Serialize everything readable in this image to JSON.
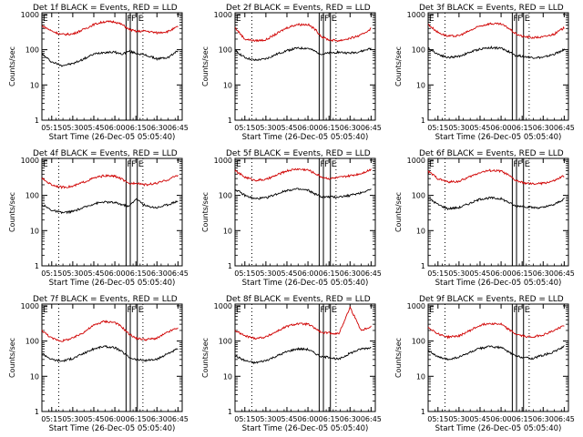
{
  "figure": {
    "ylabel": "Counts/sec",
    "xlabel": "Start Time (26-Dec-05 05:05:40)",
    "x_ticks": [
      "05:15",
      "05:30",
      "05:45",
      "06:00",
      "06:15",
      "06:30",
      "06:45"
    ],
    "y_ticks": [
      "1",
      "10",
      "100",
      "1000"
    ],
    "colors": {
      "events": "#000000",
      "lld": "#d00000",
      "axes": "#000000",
      "markers": "#000000"
    },
    "marker_labels": [
      "F",
      "F",
      "E"
    ]
  },
  "chart_data": [
    {
      "type": "line",
      "title": "Det 1f BLACK = Events, RED = LLD",
      "yscale": "log",
      "ylim": [
        1,
        1000
      ],
      "xlim": [
        "05:08",
        "06:48"
      ],
      "markers_x": [
        "06:08",
        "06:11",
        "06:16"
      ],
      "dotted_x": [
        "05:20",
        "06:20"
      ],
      "series": [
        {
          "name": "Events",
          "x": [
            "05:08",
            "05:15",
            "05:22",
            "05:30",
            "05:38",
            "05:45",
            "05:52",
            "06:00",
            "06:05",
            "06:10",
            "06:15",
            "06:22",
            "06:30",
            "06:38",
            "06:45"
          ],
          "y": [
            75,
            45,
            36,
            40,
            55,
            75,
            85,
            85,
            75,
            90,
            80,
            70,
            55,
            60,
            95
          ]
        },
        {
          "name": "LLD",
          "x": [
            "05:08",
            "05:15",
            "05:22",
            "05:30",
            "05:38",
            "05:45",
            "05:52",
            "06:00",
            "06:05",
            "06:10",
            "06:15",
            "06:22",
            "06:30",
            "06:38",
            "06:45"
          ],
          "y": [
            480,
            340,
            270,
            280,
            380,
            520,
            620,
            620,
            520,
            380,
            330,
            340,
            300,
            330,
            450
          ]
        }
      ]
    },
    {
      "type": "line",
      "title": "Det 2f BLACK = Events, RED = LLD",
      "yscale": "log",
      "ylim": [
        1,
        1000
      ],
      "xlim": [
        "05:08",
        "06:48"
      ],
      "markers_x": [
        "06:08",
        "06:11",
        "06:16"
      ],
      "dotted_x": [
        "05:20",
        "06:20"
      ],
      "series": [
        {
          "name": "Events",
          "x": [
            "05:08",
            "05:15",
            "05:22",
            "05:30",
            "05:38",
            "05:45",
            "05:52",
            "06:00",
            "06:05",
            "06:10",
            "06:15",
            "06:22",
            "06:30",
            "06:38",
            "06:45"
          ],
          "y": [
            95,
            60,
            50,
            55,
            75,
            95,
            110,
            110,
            90,
            75,
            80,
            85,
            80,
            90,
            110
          ]
        },
        {
          "name": "LLD",
          "x": [
            "05:08",
            "05:15",
            "05:22",
            "05:30",
            "05:38",
            "05:45",
            "05:52",
            "06:00",
            "06:05",
            "06:10",
            "06:15",
            "06:22",
            "06:30",
            "06:38",
            "06:45"
          ],
          "y": [
            420,
            200,
            180,
            190,
            290,
            420,
            520,
            520,
            380,
            230,
            190,
            180,
            210,
            260,
            400
          ]
        }
      ]
    },
    {
      "type": "line",
      "title": "Det 3f BLACK = Events, RED = LLD",
      "yscale": "log",
      "ylim": [
        1,
        1000
      ],
      "xlim": [
        "05:08",
        "06:48"
      ],
      "markers_x": [
        "06:08",
        "06:11",
        "06:16"
      ],
      "dotted_x": [
        "05:20",
        "06:20"
      ],
      "series": [
        {
          "name": "Events",
          "x": [
            "05:08",
            "05:15",
            "05:22",
            "05:30",
            "05:38",
            "05:45",
            "05:52",
            "06:00",
            "06:05",
            "06:10",
            "06:15",
            "06:22",
            "06:30",
            "06:38",
            "06:45"
          ],
          "y": [
            110,
            75,
            60,
            65,
            85,
            105,
            115,
            110,
            90,
            70,
            65,
            60,
            60,
            75,
            100
          ]
        },
        {
          "name": "LLD",
          "x": [
            "05:08",
            "05:15",
            "05:22",
            "05:30",
            "05:38",
            "05:45",
            "05:52",
            "06:00",
            "06:05",
            "06:10",
            "06:15",
            "06:22",
            "06:30",
            "06:38",
            "06:45"
          ],
          "y": [
            520,
            310,
            240,
            250,
            350,
            470,
            550,
            530,
            420,
            290,
            240,
            220,
            230,
            280,
            420
          ]
        }
      ]
    },
    {
      "type": "line",
      "title": "Det 4f BLACK = Events, RED = LLD",
      "yscale": "log",
      "ylim": [
        1,
        1000
      ],
      "xlim": [
        "05:08",
        "06:48"
      ],
      "markers_x": [
        "06:08",
        "06:11",
        "06:16"
      ],
      "dotted_x": [
        "05:20",
        "06:20"
      ],
      "series": [
        {
          "name": "Events",
          "x": [
            "05:08",
            "05:15",
            "05:22",
            "05:30",
            "05:38",
            "05:45",
            "05:52",
            "06:00",
            "06:05",
            "06:10",
            "06:15",
            "06:22",
            "06:30",
            "06:38",
            "06:45"
          ],
          "y": [
            55,
            38,
            32,
            35,
            45,
            58,
            65,
            62,
            55,
            48,
            80,
            50,
            45,
            55,
            70
          ]
        },
        {
          "name": "LLD",
          "x": [
            "05:08",
            "05:15",
            "05:22",
            "05:30",
            "05:38",
            "05:45",
            "05:52",
            "06:00",
            "06:05",
            "06:10",
            "06:15",
            "06:22",
            "06:30",
            "06:38",
            "06:45"
          ],
          "y": [
            300,
            200,
            170,
            180,
            240,
            310,
            360,
            350,
            290,
            210,
            230,
            200,
            220,
            280,
            380
          ]
        }
      ]
    },
    {
      "type": "line",
      "title": "Det 5f BLACK = Events, RED = LLD",
      "yscale": "log",
      "ylim": [
        1,
        1000
      ],
      "xlim": [
        "05:08",
        "06:48"
      ],
      "markers_x": [
        "06:08",
        "06:11",
        "06:16"
      ],
      "dotted_x": [
        "05:20",
        "06:20"
      ],
      "series": [
        {
          "name": "Events",
          "x": [
            "05:08",
            "05:15",
            "05:22",
            "05:30",
            "05:38",
            "05:45",
            "05:52",
            "06:00",
            "06:05",
            "06:10",
            "06:15",
            "06:22",
            "06:30",
            "06:38",
            "06:45"
          ],
          "y": [
            150,
            100,
            80,
            85,
            110,
            140,
            150,
            140,
            110,
            90,
            90,
            90,
            100,
            120,
            150
          ]
        },
        {
          "name": "LLD",
          "x": [
            "05:08",
            "05:15",
            "05:22",
            "05:30",
            "05:38",
            "05:45",
            "05:52",
            "06:00",
            "06:05",
            "06:10",
            "06:15",
            "06:22",
            "06:30",
            "06:38",
            "06:45"
          ],
          "y": [
            500,
            330,
            270,
            280,
            380,
            500,
            560,
            530,
            420,
            330,
            300,
            320,
            360,
            420,
            550
          ]
        }
      ]
    },
    {
      "type": "line",
      "title": "Det 6f BLACK = Events, RED = LLD",
      "yscale": "log",
      "ylim": [
        1,
        1000
      ],
      "xlim": [
        "05:08",
        "06:48"
      ],
      "markers_x": [
        "06:08",
        "06:11",
        "06:16"
      ],
      "dotted_x": [
        "05:20",
        "06:20"
      ],
      "series": [
        {
          "name": "Events",
          "x": [
            "05:08",
            "05:15",
            "05:22",
            "05:30",
            "05:38",
            "05:45",
            "05:52",
            "06:00",
            "06:05",
            "06:10",
            "06:15",
            "06:22",
            "06:30",
            "06:38",
            "06:45"
          ],
          "y": [
            85,
            55,
            42,
            45,
            60,
            78,
            85,
            80,
            65,
            50,
            50,
            45,
            45,
            55,
            80
          ]
        },
        {
          "name": "LLD",
          "x": [
            "05:08",
            "05:15",
            "05:22",
            "05:30",
            "05:38",
            "05:45",
            "05:52",
            "06:00",
            "06:05",
            "06:10",
            "06:15",
            "06:22",
            "06:30",
            "06:38",
            "06:45"
          ],
          "y": [
            480,
            300,
            240,
            250,
            340,
            450,
            510,
            490,
            380,
            270,
            230,
            210,
            220,
            260,
            360
          ]
        }
      ]
    },
    {
      "type": "line",
      "title": "Det 7f BLACK = Events, RED = LLD",
      "yscale": "log",
      "ylim": [
        1,
        1000
      ],
      "xlim": [
        "05:08",
        "06:48"
      ],
      "markers_x": [
        "06:08",
        "06:11",
        "06:16"
      ],
      "dotted_x": [
        "05:20",
        "06:20"
      ],
      "series": [
        {
          "name": "Events",
          "x": [
            "05:08",
            "05:15",
            "05:22",
            "05:30",
            "05:38",
            "05:45",
            "05:52",
            "06:00",
            "06:05",
            "06:10",
            "06:15",
            "06:22",
            "06:30",
            "06:38",
            "06:45"
          ],
          "y": [
            45,
            30,
            27,
            32,
            45,
            60,
            70,
            65,
            50,
            35,
            30,
            28,
            30,
            45,
            60
          ]
        },
        {
          "name": "LLD",
          "x": [
            "05:08",
            "05:15",
            "05:22",
            "05:30",
            "05:38",
            "05:45",
            "05:52",
            "06:00",
            "06:05",
            "06:10",
            "06:15",
            "06:22",
            "06:30",
            "06:38",
            "06:45"
          ],
          "y": [
            200,
            120,
            100,
            120,
            180,
            280,
            360,
            340,
            250,
            160,
            120,
            110,
            120,
            180,
            240
          ]
        }
      ]
    },
    {
      "type": "line",
      "title": "Det 8f BLACK = Events, RED = LLD",
      "yscale": "log",
      "ylim": [
        1,
        1000
      ],
      "xlim": [
        "05:08",
        "06:48"
      ],
      "markers_x": [
        "06:08",
        "06:11",
        "06:16"
      ],
      "dotted_x": [
        "05:20",
        "06:20"
      ],
      "series": [
        {
          "name": "Events",
          "x": [
            "05:08",
            "05:15",
            "05:22",
            "05:30",
            "05:38",
            "05:45",
            "05:52",
            "06:00",
            "06:05",
            "06:10",
            "06:15",
            "06:22",
            "06:30",
            "06:38",
            "06:45"
          ],
          "y": [
            38,
            28,
            24,
            28,
            38,
            50,
            60,
            58,
            45,
            35,
            35,
            30,
            45,
            60,
            65
          ]
        },
        {
          "name": "LLD",
          "x": [
            "05:08",
            "05:15",
            "05:22",
            "05:30",
            "05:38",
            "05:45",
            "05:52",
            "06:00",
            "06:05",
            "06:10",
            "06:15",
            "06:22",
            "06:30",
            "06:38",
            "06:45"
          ],
          "y": [
            200,
            140,
            120,
            130,
            190,
            260,
            310,
            300,
            230,
            170,
            170,
            160,
            900,
            200,
            260
          ]
        }
      ]
    },
    {
      "type": "line",
      "title": "Det 9f BLACK = Events, RED = LLD",
      "yscale": "log",
      "ylim": [
        1,
        1000
      ],
      "xlim": [
        "05:08",
        "06:48"
      ],
      "markers_x": [
        "06:08",
        "06:11",
        "06:16"
      ],
      "dotted_x": [
        "05:20",
        "06:20"
      ],
      "series": [
        {
          "name": "Events",
          "x": [
            "05:08",
            "05:15",
            "05:22",
            "05:30",
            "05:38",
            "05:45",
            "05:52",
            "06:00",
            "06:05",
            "06:10",
            "06:15",
            "06:22",
            "06:30",
            "06:38",
            "06:45"
          ],
          "y": [
            55,
            35,
            30,
            35,
            48,
            62,
            70,
            65,
            50,
            38,
            35,
            32,
            40,
            50,
            70
          ]
        },
        {
          "name": "LLD",
          "x": [
            "05:08",
            "05:15",
            "05:22",
            "05:30",
            "05:38",
            "05:45",
            "05:52",
            "06:00",
            "06:05",
            "06:10",
            "06:15",
            "06:22",
            "06:30",
            "06:38",
            "06:45"
          ],
          "y": [
            250,
            160,
            130,
            140,
            200,
            280,
            320,
            300,
            220,
            160,
            140,
            130,
            150,
            200,
            280
          ]
        }
      ]
    }
  ]
}
